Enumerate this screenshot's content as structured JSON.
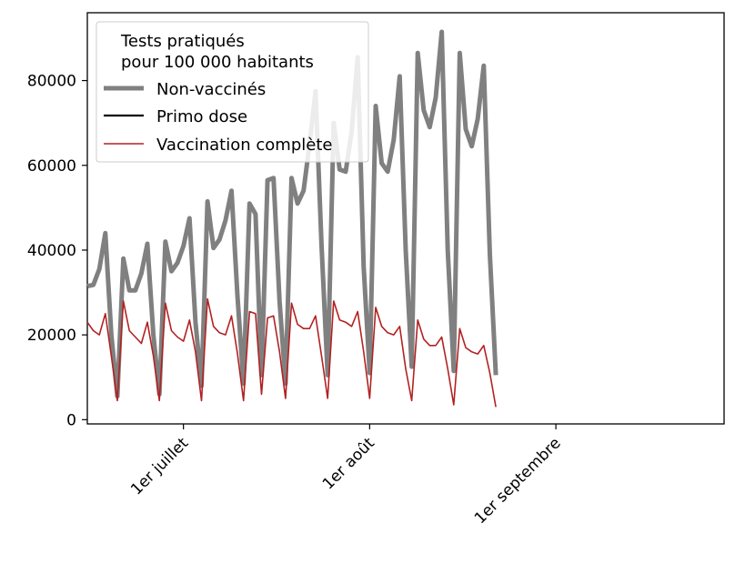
{
  "chart_data": {
    "type": "line",
    "title": "",
    "xlabel": "",
    "ylabel": "",
    "x_start": "2021-06-15",
    "x_range": [
      "2021-06-15",
      "2021-09-29"
    ],
    "ylim": [
      -1000,
      96000
    ],
    "y_ticks": [
      0,
      20000,
      40000,
      60000,
      80000
    ],
    "y_tick_labels": [
      "0",
      "20000",
      "40000",
      "60000",
      "80000"
    ],
    "x_ticks": [
      {
        "date": "2021-07-01",
        "label": "1er juillet"
      },
      {
        "date": "2021-08-01",
        "label": "1er août"
      },
      {
        "date": "2021-09-01",
        "label": "1er septembre"
      }
    ],
    "grid": false,
    "legend": {
      "title": "Tests pratiqués\npour 100 000 habitants",
      "title_lines": [
        "Tests pratiqués",
        "pour 100 000 habitants"
      ],
      "placement": "upper-left"
    },
    "series": [
      {
        "name": "Non-vaccinés",
        "color": "#808080",
        "start": "2021-06-15",
        "values": [
          31500,
          31800,
          35500,
          44000,
          20000,
          5500,
          38000,
          30500,
          30500,
          34500,
          41500,
          20000,
          6000,
          42000,
          35000,
          37000,
          41000,
          47500,
          23000,
          8000,
          51500,
          40500,
          42500,
          47000,
          54000,
          29000,
          8500,
          51000,
          48500,
          10500,
          56500,
          57000,
          28000,
          8500,
          57000,
          51000,
          54000,
          65000,
          77500,
          41000,
          10500,
          70000,
          59000,
          58500,
          68000,
          85500,
          36000,
          11000,
          74000,
          60500,
          58500,
          66000,
          81000,
          40000,
          12500,
          86500,
          73000,
          69000,
          76000,
          91500,
          40000,
          11500,
          86500,
          68500,
          64500,
          71000,
          83500,
          39000,
          10500
        ]
      },
      {
        "name": "Primo dose",
        "color": "#000000",
        "values": []
      },
      {
        "name": "Vaccination complète",
        "color": "#b22222",
        "start": "2021-06-15",
        "values": [
          23000,
          21000,
          20000,
          25000,
          15000,
          4500,
          28000,
          21000,
          19500,
          18000,
          23000,
          15000,
          4500,
          27500,
          21000,
          19500,
          18500,
          23500,
          16000,
          4500,
          28500,
          22000,
          20500,
          20000,
          24500,
          15500,
          4500,
          25500,
          25000,
          6000,
          24000,
          24500,
          16000,
          5000,
          27500,
          22500,
          21500,
          21500,
          24500,
          15000,
          5000,
          28000,
          23500,
          23000,
          22000,
          25500,
          16000,
          5000,
          26500,
          22000,
          20500,
          20000,
          22000,
          12000,
          4500,
          23500,
          19000,
          17500,
          17500,
          19500,
          12000,
          3500,
          21500,
          17000,
          16000,
          15500,
          17500,
          11000,
          3000
        ]
      }
    ]
  }
}
